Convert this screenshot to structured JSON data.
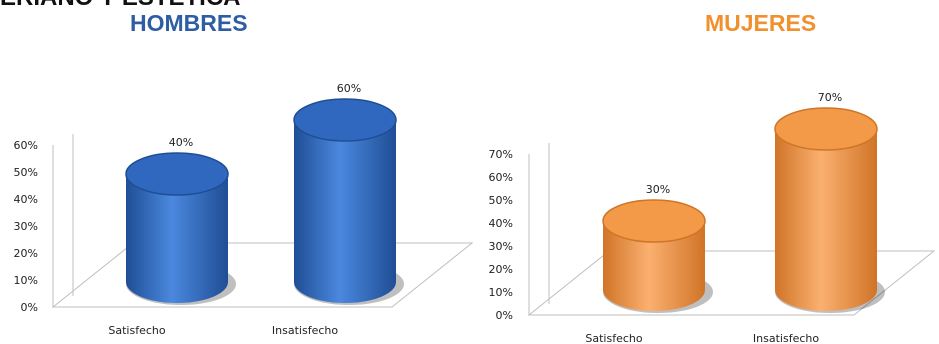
{
  "header_text": "ERIANO Y ESTETICA",
  "colors": {
    "men_title": "#2E5DA4",
    "women_title": "#F0912E",
    "men_bar": "#2F68BE",
    "men_bar_light": "#4B88DE",
    "men_bar_dark": "#1F4E95",
    "women_bar": "#F39A48",
    "women_bar_light": "#FBB070",
    "women_bar_dark": "#D07427"
  },
  "chart_data": [
    {
      "type": "bar",
      "title": "HOMBRES",
      "categories": [
        "Satisfecho",
        "Insatisfecho"
      ],
      "values": [
        40,
        60
      ],
      "data_labels": [
        "40%",
        "60%"
      ],
      "ylim": [
        0,
        60
      ],
      "yticks": [
        "0%",
        "10%",
        "20%",
        "30%",
        "40%",
        "50%",
        "60%"
      ],
      "grid": false,
      "legend": "none"
    },
    {
      "type": "bar",
      "title": "MUJERES",
      "categories": [
        "Satisfecho",
        "Insatisfecho"
      ],
      "values": [
        30,
        70
      ],
      "data_labels": [
        "30%",
        "70%"
      ],
      "ylim": [
        0,
        70
      ],
      "yticks": [
        "0%",
        "10%",
        "20%",
        "30%",
        "40%",
        "50%",
        "60%",
        "70%"
      ],
      "grid": false,
      "legend": "none"
    }
  ]
}
